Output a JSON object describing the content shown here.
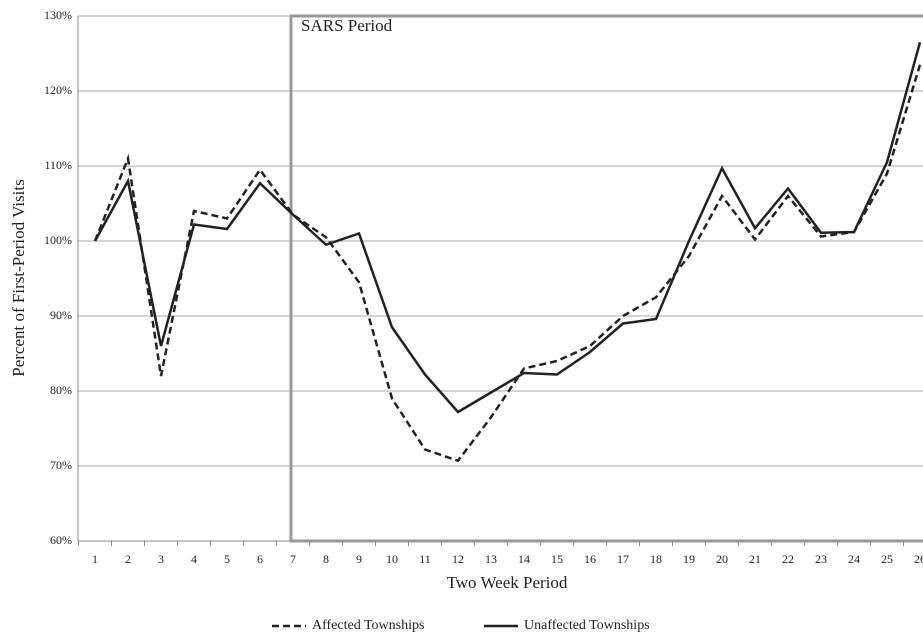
{
  "chart_data": {
    "type": "line",
    "x_label": "Two Week Period",
    "y_label": "Percent of First-Period Visits",
    "categories": [
      "1",
      "2",
      "3",
      "4",
      "5",
      "6",
      "7",
      "8",
      "9",
      "10",
      "11",
      "12",
      "13",
      "14",
      "15",
      "16",
      "17",
      "18",
      "19",
      "20",
      "21",
      "22",
      "23",
      "24",
      "25",
      "26"
    ],
    "series": [
      {
        "name": "Affected Townships",
        "color": "#222222",
        "style": "dashed",
        "values": [
          100,
          111,
          82,
          104,
          103,
          109.5,
          103.5,
          100.5,
          94.5,
          79,
          72.2,
          70.7,
          76.5,
          83,
          84,
          86,
          90,
          92.5,
          98,
          106,
          100.2,
          106,
          100.6,
          101.2,
          109,
          123.5
        ]
      },
      {
        "name": "Unaffected Townships",
        "color": "#222222",
        "style": "solid",
        "values": [
          100,
          108,
          86,
          102.2,
          101.6,
          107.7,
          103.5,
          99.5,
          101,
          88.5,
          82.2,
          77.2,
          79.8,
          82.4,
          82.2,
          85.2,
          89,
          89.6,
          100,
          109.7,
          101.7,
          107,
          101.1,
          101.2,
          110.5,
          126.5
        ]
      }
    ],
    "ylim": [
      60,
      130
    ],
    "yticks": [
      {
        "value": 60,
        "label": "60%"
      },
      {
        "value": 70,
        "label": "70%"
      },
      {
        "value": 80,
        "label": "80%"
      },
      {
        "value": 90,
        "label": "90%"
      },
      {
        "value": 100,
        "label": "100%"
      },
      {
        "value": 110,
        "label": "110%"
      },
      {
        "value": 120,
        "label": "120%"
      },
      {
        "value": 130,
        "label": "130%"
      }
    ],
    "grid": true,
    "legend": "bottom",
    "annotations": [
      {
        "text": "SARS Period",
        "start": "7"
      }
    ]
  }
}
